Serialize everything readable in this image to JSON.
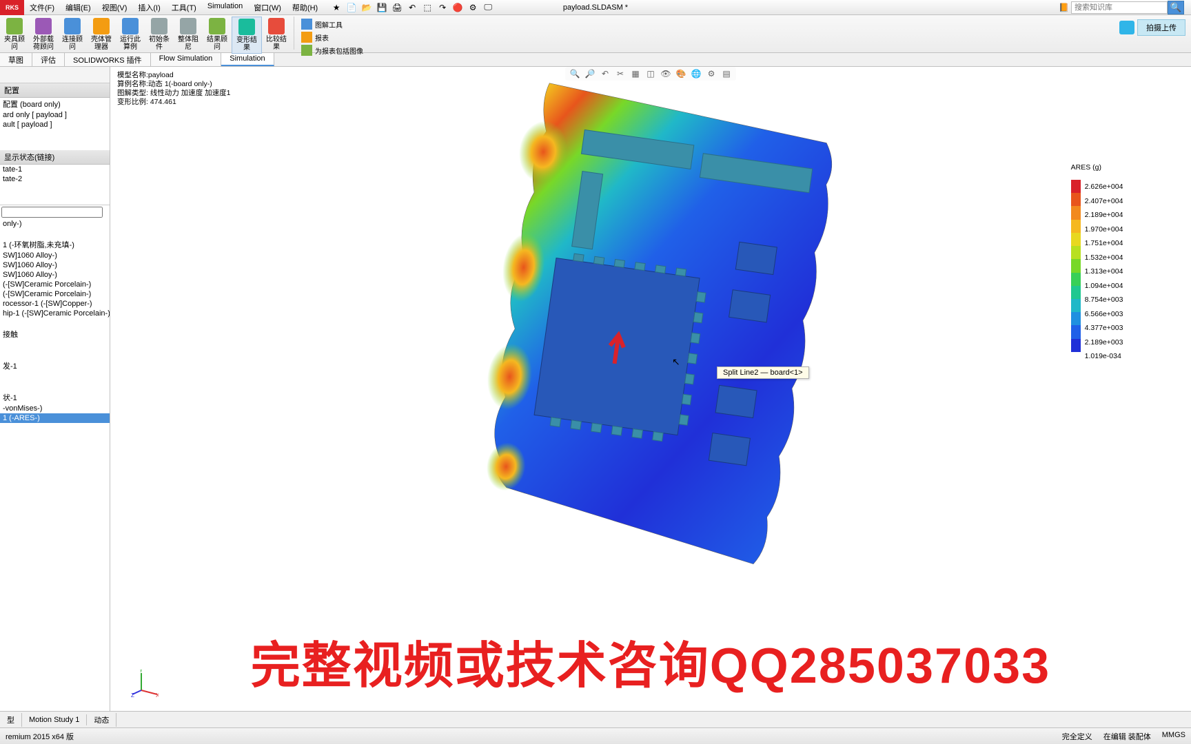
{
  "app": {
    "logo_text": "RKS",
    "title": "payload.SLDASM *"
  },
  "menu": [
    "文件(F)",
    "编辑(E)",
    "视图(V)",
    "插入(I)",
    "工具(T)",
    "Simulation",
    "窗口(W)",
    "帮助(H)"
  ],
  "search": {
    "placeholder": "搜索知识库"
  },
  "upload": {
    "label": "拍摄上传"
  },
  "ribbon": {
    "large": [
      {
        "lbl1": "夹具顾",
        "lbl2": "问",
        "color": "ico-green"
      },
      {
        "lbl1": "外部载",
        "lbl2": "荷顾问",
        "color": "ico-purple"
      },
      {
        "lbl1": "连接顾",
        "lbl2": "问",
        "color": "ico-blue"
      },
      {
        "lbl1": "壳体管",
        "lbl2": "理器",
        "color": "ico-orange"
      },
      {
        "lbl1": "运行此",
        "lbl2": "算例",
        "color": "ico-blue"
      },
      {
        "lbl1": "初始条",
        "lbl2": "件",
        "color": "ico-gray"
      },
      {
        "lbl1": "整体阻",
        "lbl2": "尼",
        "color": "ico-gray"
      },
      {
        "lbl1": "结果顾",
        "lbl2": "问",
        "color": "ico-green"
      },
      {
        "lbl1": "变形结",
        "lbl2": "果",
        "color": "ico-teal",
        "pressed": true
      },
      {
        "lbl1": "比较结",
        "lbl2": "果",
        "color": "ico-red"
      }
    ],
    "small": [
      {
        "label": "图解工具",
        "color": "ico-blue"
      },
      {
        "label": "报表",
        "color": "ico-orange"
      },
      {
        "label": "为报表包括图像",
        "color": "ico-green"
      }
    ]
  },
  "tabs": [
    "草图",
    "评估",
    "SOLIDWORKS 插件",
    "Flow Simulation",
    "Simulation"
  ],
  "active_tab": 4,
  "sidebar": {
    "sec1_title": "配置",
    "sec1_items": [
      "配置  (board only)",
      "ard only [ payload ]",
      "ault [ payload ]"
    ],
    "sec2_title": "显示状态(链接)",
    "sec2_items": [
      "tate-1",
      "tate-2"
    ],
    "tree": [
      "only-)",
      "",
      "1 (-环氧树脂,未充填-)",
      "SW]1060 Alloy-)",
      "SW]1060 Alloy-)",
      "SW]1060 Alloy-)",
      "(-[SW]Ceramic Porcelain-)",
      "(-[SW]Ceramic Porcelain-)",
      "rocessor-1 (-[SW]Copper-)",
      "hip-1 (-[SW]Ceramic Porcelain-)",
      "",
      "接触",
      "",
      "",
      "发-1",
      "",
      "",
      "状-1",
      "-vonMises-)"
    ],
    "tree_sel": "1 (-ARES-)"
  },
  "info": {
    "l1": "模型名称:payload",
    "l2": "算例名称:动态 1(-board only-)",
    "l3": "图解类型: 线性动力 加速度 加速度1",
    "l4": "变形比例: 474.461"
  },
  "tooltip": "Split Line2 — board<1>",
  "legend": {
    "title": "ARES (g)",
    "values": [
      "2.626e+004",
      "2.407e+004",
      "2.189e+004",
      "1.970e+004",
      "1.751e+004",
      "1.532e+004",
      "1.313e+004",
      "1.094e+004",
      "8.754e+003",
      "6.566e+003",
      "4.377e+003",
      "2.189e+003",
      "1.019e-034"
    ],
    "colors": [
      "#d9222a",
      "#e8551c",
      "#f28a1e",
      "#f5b820",
      "#e8d820",
      "#b8e020",
      "#78d828",
      "#38d058",
      "#20c890",
      "#20b8c8",
      "#2090e0",
      "#2060e8",
      "#2030d8"
    ]
  },
  "watermark": "完整视频或技术咨询QQ285037033",
  "bottom_tabs": [
    "型",
    "Motion Study 1",
    "动态"
  ],
  "status": {
    "left": "remium 2015 x64 版",
    "r1": "完全定义",
    "r2": "在编辑 装配体",
    "r3": "MMGS"
  }
}
